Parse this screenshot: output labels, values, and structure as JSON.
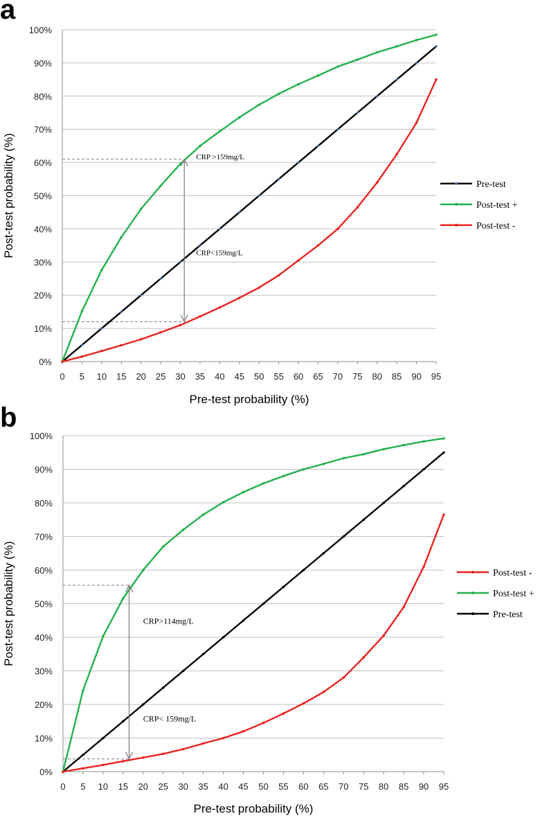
{
  "chart_data": [
    {
      "panel": "a",
      "type": "line",
      "x": [
        0,
        5,
        10,
        15,
        20,
        25,
        30,
        35,
        40,
        45,
        50,
        55,
        60,
        65,
        70,
        75,
        80,
        85,
        90,
        95
      ],
      "ylim": [
        0,
        100
      ],
      "yticks": [
        "0%",
        "10%",
        "20%",
        "30%",
        "40%",
        "50%",
        "60%",
        "70%",
        "80%",
        "90%",
        "100%"
      ],
      "xlabel": "Pre-test probability (%)",
      "ylabel": "Post-test probability (%)",
      "legend_position": "right",
      "series": [
        {
          "name": "Pre-test",
          "color": "#000000",
          "marker": "#4a6fa5",
          "values": [
            0,
            5,
            10,
            15,
            20,
            25,
            30,
            35,
            40,
            45,
            50,
            55,
            60,
            65,
            70,
            75,
            80,
            85,
            90,
            95
          ]
        },
        {
          "name": "Post-test +",
          "color": "#22b14c",
          "marker": "#22b14c",
          "values": [
            0,
            15.2,
            27.6,
            37.5,
            46,
            53,
            59.6,
            65,
            69.4,
            73.6,
            77.4,
            80.7,
            83.6,
            86.2,
            88.9,
            91,
            93.2,
            95,
            96.9,
            98.5
          ]
        },
        {
          "name": "Post-test -",
          "color": "#e8221f",
          "marker": "#e8221f",
          "values": [
            0,
            1.5,
            3.2,
            4.9,
            6.7,
            8.8,
            11,
            13.6,
            16.3,
            19.2,
            22.3,
            26,
            30.5,
            35,
            40,
            46.5,
            54,
            62.5,
            72,
            85
          ]
        }
      ],
      "legend_order": [
        "Pre-test",
        "Post-test +",
        "Post-test -"
      ],
      "annotations": [
        {
          "text": "CRP >159mg/L",
          "x": 34,
          "y": 61
        },
        {
          "text": "CRP<159mg/L",
          "x": 34,
          "y": 32
        }
      ],
      "arrow": {
        "x": 31,
        "y_top": 61,
        "y_bottom": 12
      },
      "dashed": [
        {
          "y": 61,
          "x_end": 31
        },
        {
          "y": 12,
          "x_end": 31
        }
      ]
    },
    {
      "panel": "b",
      "type": "line",
      "x": [
        0,
        5,
        10,
        15,
        20,
        25,
        30,
        35,
        40,
        45,
        50,
        55,
        60,
        65,
        70,
        75,
        80,
        85,
        90,
        95
      ],
      "ylim": [
        0,
        100
      ],
      "yticks": [
        "0%",
        "10%",
        "20%",
        "30%",
        "40%",
        "50%",
        "60%",
        "70%",
        "80%",
        "90%",
        "100%"
      ],
      "xlabel": "Pre-test probability (%)",
      "ylabel": "Post-test probability (%)",
      "legend_position": "right",
      "series": [
        {
          "name": "Pre-test",
          "color": "#000000",
          "marker": "#000000",
          "values": [
            0,
            5,
            10,
            15,
            20,
            25,
            30,
            35,
            40,
            45,
            50,
            55,
            60,
            65,
            70,
            75,
            80,
            85,
            90,
            95
          ]
        },
        {
          "name": "Post-test +",
          "color": "#22b14c",
          "marker": "#22b14c",
          "values": [
            0,
            24.2,
            40.3,
            51.6,
            60,
            67,
            72,
            76.5,
            80.2,
            83.2,
            85.8,
            88,
            90,
            91.6,
            93.3,
            94.5,
            96,
            97.2,
            98.3,
            99.2
          ]
        },
        {
          "name": "Post-test -",
          "color": "#e8221f",
          "marker": "#e8221f",
          "values": [
            0,
            1,
            2,
            3.1,
            4.2,
            5.3,
            6.7,
            8.4,
            10,
            12,
            14.5,
            17.3,
            20.3,
            23.7,
            28,
            34,
            40.5,
            49,
            61,
            76.5
          ]
        }
      ],
      "legend_order": [
        "Post-test -",
        "Post-test +",
        "Pre-test"
      ],
      "annotations": [
        {
          "text": "CRP>114mg/L",
          "x": 20,
          "y": 44
        },
        {
          "text": "CRP< 159mg/L",
          "x": 20,
          "y": 15
        }
      ],
      "arrow": {
        "x": 16.5,
        "y_top": 55.5,
        "y_bottom": 3.8
      },
      "dashed": [
        {
          "y": 55.5,
          "x_end": 16.5
        },
        {
          "y": 3.8,
          "x_end": 16.5
        }
      ]
    }
  ]
}
